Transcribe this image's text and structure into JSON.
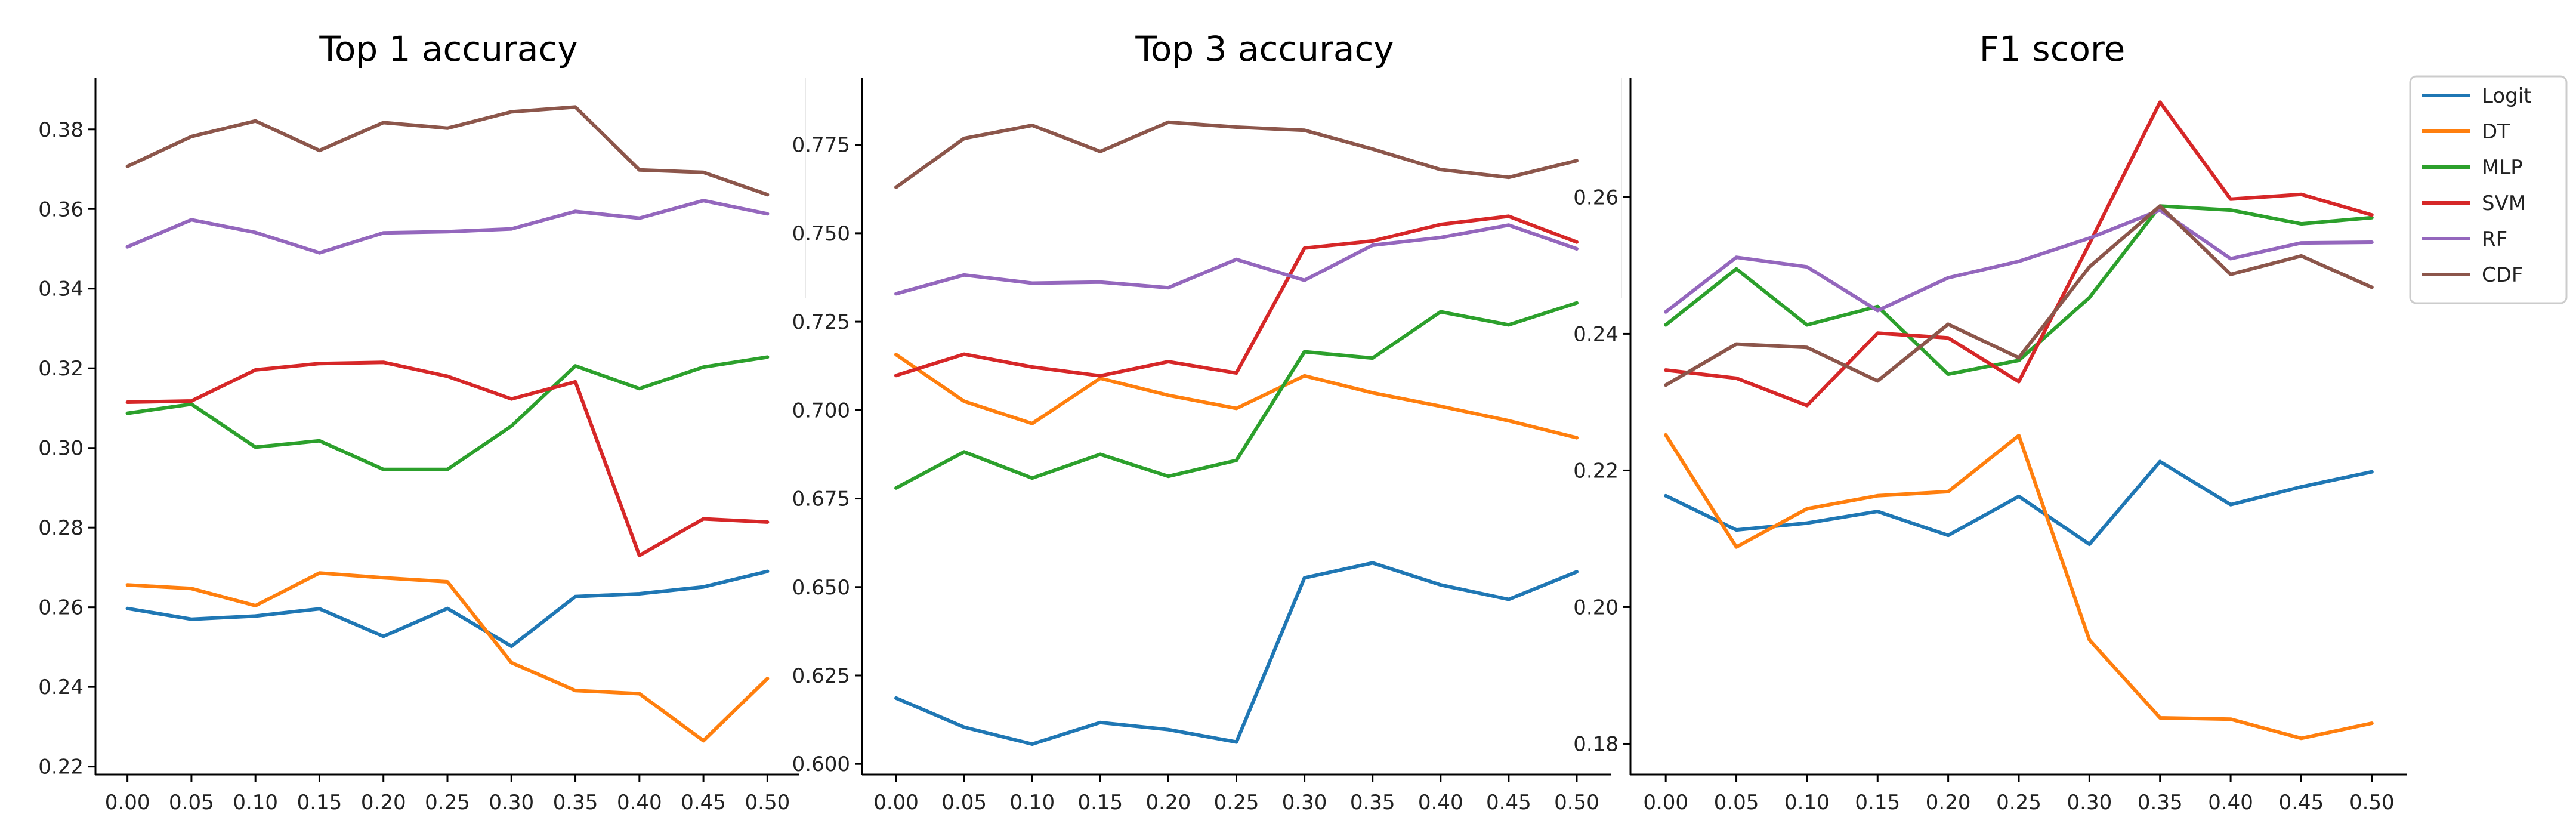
{
  "chart_data": [
    {
      "type": "line",
      "title": "Top 1 accuracy",
      "xlabel": "",
      "ylabel": "",
      "x": [
        0.0,
        0.05,
        0.1,
        0.15,
        0.2,
        0.25,
        0.3,
        0.35,
        0.4,
        0.45,
        0.5
      ],
      "x_tick_labels": [
        "0.00",
        "0.05",
        "0.10",
        "0.15",
        "0.20",
        "0.25",
        "0.30",
        "0.35",
        "0.40",
        "0.45",
        "0.50"
      ],
      "xlim": [
        -0.025,
        0.525
      ],
      "ylim": [
        0.218,
        0.393
      ],
      "y_ticks": [
        0.22,
        0.24,
        0.26,
        0.28,
        0.3,
        0.32,
        0.34,
        0.36,
        0.38
      ],
      "y_tick_labels": [
        "0.22",
        "0.24",
        "0.26",
        "0.28",
        "0.30",
        "0.32",
        "0.34",
        "0.36",
        "0.38"
      ],
      "grid": false,
      "series": [
        {
          "name": "Logit",
          "color": "#1f77b4",
          "values": [
            0.2597,
            0.257,
            0.2578,
            0.2596,
            0.2527,
            0.2597,
            0.2502,
            0.2627,
            0.2634,
            0.2651,
            0.269
          ]
        },
        {
          "name": "DT",
          "color": "#ff7f0e",
          "values": [
            0.2656,
            0.2647,
            0.2604,
            0.2686,
            0.2674,
            0.2664,
            0.2461,
            0.2391,
            0.2383,
            0.2265,
            0.2421
          ]
        },
        {
          "name": "MLP",
          "color": "#2ca02c",
          "values": [
            0.3087,
            0.311,
            0.3002,
            0.3018,
            0.2946,
            0.2946,
            0.3055,
            0.3206,
            0.3149,
            0.3203,
            0.3228
          ]
        },
        {
          "name": "SVM",
          "color": "#d62728",
          "values": [
            0.3115,
            0.3118,
            0.3196,
            0.3212,
            0.3215,
            0.318,
            0.3123,
            0.3166,
            0.273,
            0.2822,
            0.2814
          ]
        },
        {
          "name": "RF",
          "color": "#9467bd",
          "values": [
            0.3505,
            0.3573,
            0.3541,
            0.349,
            0.354,
            0.3543,
            0.355,
            0.3594,
            0.3577,
            0.3621,
            0.3588
          ]
        },
        {
          "name": "CDF",
          "color": "#8c564b",
          "values": [
            0.3707,
            0.3782,
            0.3821,
            0.3747,
            0.3817,
            0.3803,
            0.3844,
            0.3856,
            0.3698,
            0.3692,
            0.3636
          ]
        }
      ]
    },
    {
      "type": "line",
      "title": "Top 3 accuracy",
      "xlabel": "",
      "ylabel": "",
      "x": [
        0.0,
        0.05,
        0.1,
        0.15,
        0.2,
        0.25,
        0.3,
        0.35,
        0.4,
        0.45,
        0.5
      ],
      "x_tick_labels": [
        "0.00",
        "0.05",
        "0.10",
        "0.15",
        "0.20",
        "0.25",
        "0.30",
        "0.35",
        "0.40",
        "0.45",
        "0.50"
      ],
      "xlim": [
        -0.025,
        0.525
      ],
      "ylim": [
        0.597,
        0.794
      ],
      "y_ticks": [
        0.6,
        0.625,
        0.65,
        0.675,
        0.7,
        0.725,
        0.75,
        0.775
      ],
      "y_tick_labels": [
        "0.600",
        "0.625",
        "0.650",
        "0.675",
        "0.700",
        "0.725",
        "0.750",
        "0.775"
      ],
      "grid": false,
      "series": [
        {
          "name": "Logit",
          "color": "#1f77b4",
          "values": [
            0.6186,
            0.6104,
            0.6056,
            0.6117,
            0.6097,
            0.6062,
            0.6526,
            0.6568,
            0.6506,
            0.6465,
            0.6543
          ]
        },
        {
          "name": "DT",
          "color": "#ff7f0e",
          "values": [
            0.7157,
            0.7025,
            0.6962,
            0.709,
            0.7042,
            0.7005,
            0.7097,
            0.7049,
            0.7011,
            0.697,
            0.6922
          ]
        },
        {
          "name": "MLP",
          "color": "#2ca02c",
          "values": [
            0.678,
            0.6882,
            0.6808,
            0.6875,
            0.6813,
            0.6858,
            0.7165,
            0.7147,
            0.7278,
            0.7241,
            0.7303
          ]
        },
        {
          "name": "SVM",
          "color": "#d62728",
          "values": [
            0.7098,
            0.7158,
            0.7122,
            0.7097,
            0.7137,
            0.7105,
            0.7458,
            0.7478,
            0.7525,
            0.7548,
            0.7475
          ]
        },
        {
          "name": "RF",
          "color": "#9467bd",
          "values": [
            0.7329,
            0.7382,
            0.7359,
            0.7362,
            0.7346,
            0.7426,
            0.7367,
            0.7466,
            0.7488,
            0.7523,
            0.7456
          ]
        },
        {
          "name": "CDF",
          "color": "#8c564b",
          "values": [
            0.763,
            0.7768,
            0.7805,
            0.7731,
            0.7814,
            0.78,
            0.7791,
            0.7738,
            0.768,
            0.7658,
            0.7705
          ]
        }
      ]
    },
    {
      "type": "line",
      "title": "F1 score",
      "xlabel": "",
      "ylabel": "",
      "x": [
        0.0,
        0.05,
        0.1,
        0.15,
        0.2,
        0.25,
        0.3,
        0.35,
        0.4,
        0.45,
        0.5
      ],
      "x_tick_labels": [
        "0.00",
        "0.05",
        "0.10",
        "0.15",
        "0.20",
        "0.25",
        "0.30",
        "0.35",
        "0.40",
        "0.45",
        "0.50"
      ],
      "xlim": [
        -0.025,
        0.525
      ],
      "ylim": [
        0.1755,
        0.2775
      ],
      "y_ticks": [
        0.18,
        0.2,
        0.22,
        0.24,
        0.26
      ],
      "y_tick_labels": [
        "0.18",
        "0.20",
        "0.22",
        "0.24",
        "0.26"
      ],
      "grid": false,
      "legend": {
        "position": "upper-right",
        "entries": [
          "Logit",
          "DT",
          "MLP",
          "SVM",
          "RF",
          "CDF"
        ]
      },
      "series": [
        {
          "name": "Logit",
          "color": "#1f77b4",
          "values": [
            0.2163,
            0.2113,
            0.2123,
            0.214,
            0.2105,
            0.2162,
            0.2092,
            0.2213,
            0.215,
            0.2176,
            0.2198
          ]
        },
        {
          "name": "DT",
          "color": "#ff7f0e",
          "values": [
            0.2252,
            0.2088,
            0.2144,
            0.2163,
            0.2169,
            0.2251,
            0.1952,
            0.1838,
            0.1836,
            0.1808,
            0.183
          ]
        },
        {
          "name": "MLP",
          "color": "#2ca02c",
          "values": [
            0.2413,
            0.2495,
            0.2413,
            0.244,
            0.2341,
            0.2361,
            0.2453,
            0.2587,
            0.2581,
            0.2561,
            0.257
          ]
        },
        {
          "name": "SVM",
          "color": "#d62728",
          "values": [
            0.2347,
            0.2335,
            0.2295,
            0.2401,
            0.2394,
            0.233,
            0.2532,
            0.2739,
            0.2597,
            0.2604,
            0.2574
          ]
        },
        {
          "name": "RF",
          "color": "#9467bd",
          "values": [
            0.2432,
            0.2512,
            0.2498,
            0.2434,
            0.2482,
            0.2506,
            0.254,
            0.2581,
            0.251,
            0.2533,
            0.2534
          ]
        },
        {
          "name": "CDF",
          "color": "#8c564b",
          "values": [
            0.2325,
            0.2385,
            0.238,
            0.2331,
            0.2414,
            0.2365,
            0.2498,
            0.2587,
            0.2487,
            0.2514,
            0.2468
          ]
        }
      ]
    }
  ]
}
